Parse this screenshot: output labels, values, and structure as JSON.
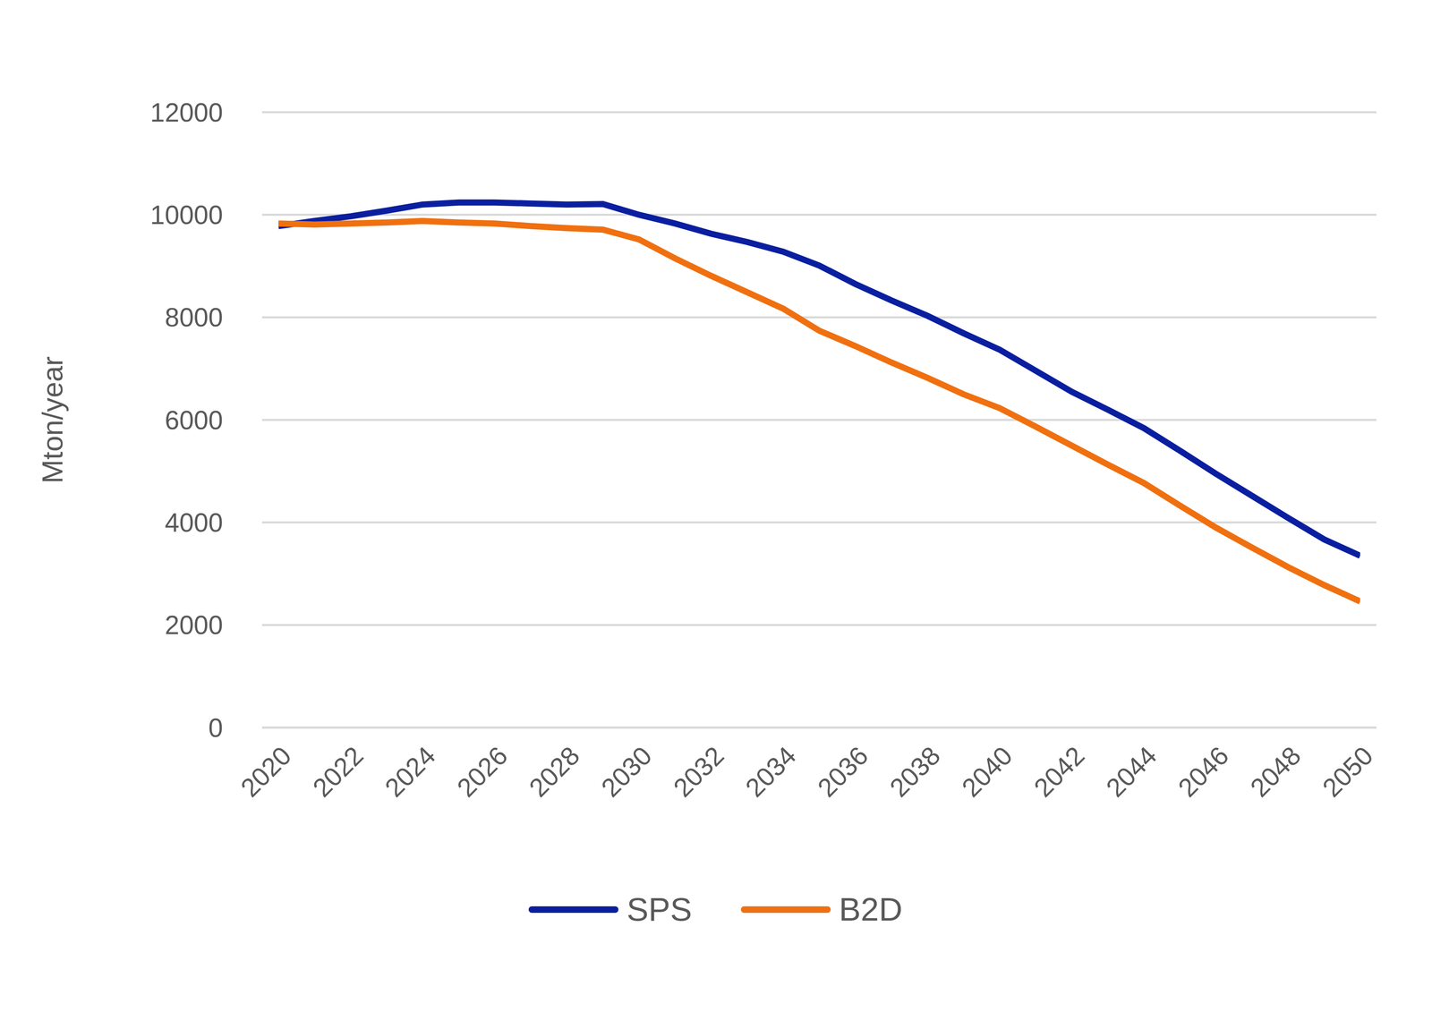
{
  "chart_data": {
    "type": "line",
    "y_label": "Mton/year",
    "x": [
      2020,
      2021,
      2022,
      2023,
      2024,
      2025,
      2026,
      2027,
      2028,
      2029,
      2030,
      2031,
      2032,
      2033,
      2034,
      2035,
      2036,
      2037,
      2038,
      2039,
      2040,
      2041,
      2042,
      2043,
      2044,
      2045,
      2046,
      2047,
      2048,
      2049,
      2050
    ],
    "xlim": [
      2020,
      2050
    ],
    "xticks": [
      2020,
      2022,
      2024,
      2026,
      2028,
      2030,
      2032,
      2034,
      2036,
      2038,
      2040,
      2042,
      2044,
      2046,
      2048,
      2050
    ],
    "ylim": [
      0,
      12000
    ],
    "yticks": [
      0,
      2000,
      4000,
      6000,
      8000,
      10000,
      12000
    ],
    "grid": true,
    "legend": "bottom",
    "series": [
      {
        "name": "SPS",
        "color": "#0a1fa0",
        "values": [
          9780,
          9880,
          9970,
          10080,
          10200,
          10240,
          10240,
          10220,
          10200,
          10210,
          10000,
          9830,
          9630,
          9470,
          9280,
          9010,
          8650,
          8330,
          8030,
          7690,
          7370,
          6960,
          6550,
          6200,
          5840,
          5400,
          4950,
          4520,
          4090,
          3670,
          3350
        ]
      },
      {
        "name": "B2D",
        "color": "#f07010",
        "values": [
          9830,
          9810,
          9830,
          9850,
          9880,
          9850,
          9830,
          9780,
          9740,
          9710,
          9520,
          9150,
          8810,
          8490,
          8170,
          7740,
          7440,
          7120,
          6820,
          6500,
          6230,
          5870,
          5500,
          5130,
          4770,
          4330,
          3900,
          3510,
          3130,
          2780,
          2460
        ]
      }
    ]
  }
}
